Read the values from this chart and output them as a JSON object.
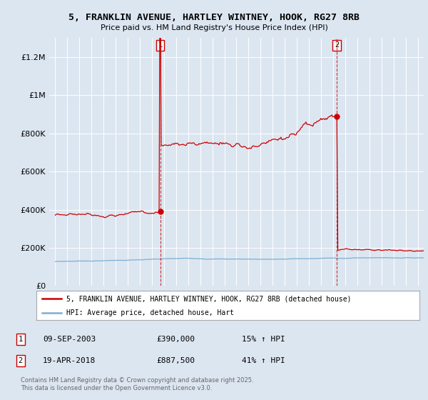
{
  "title": "5, FRANKLIN AVENUE, HARTLEY WINTNEY, HOOK, RG27 8RB",
  "subtitle": "Price paid vs. HM Land Registry's House Price Index (HPI)",
  "background_color": "#dce6f1",
  "plot_bg_color": "#dce6f1",
  "red_line_color": "#cc0000",
  "blue_line_color": "#7bafd4",
  "grid_color": "#ffffff",
  "ylim": [
    0,
    1300000
  ],
  "yticks": [
    0,
    200000,
    400000,
    600000,
    800000,
    1000000,
    1200000
  ],
  "ytick_labels": [
    "£0",
    "£200K",
    "£400K",
    "£600K",
    "£800K",
    "£1M",
    "£1.2M"
  ],
  "sale1_date_x": 2003.69,
  "sale1_price": 390000,
  "sale2_date_x": 2018.3,
  "sale2_price": 887500,
  "legend_line1": "5, FRANKLIN AVENUE, HARTLEY WINTNEY, HOOK, RG27 8RB (detached house)",
  "legend_line2": "HPI: Average price, detached house, Hart",
  "footer": "Contains HM Land Registry data © Crown copyright and database right 2025.\nThis data is licensed under the Open Government Licence v3.0.",
  "xmin": 1994.5,
  "xmax": 2025.5
}
